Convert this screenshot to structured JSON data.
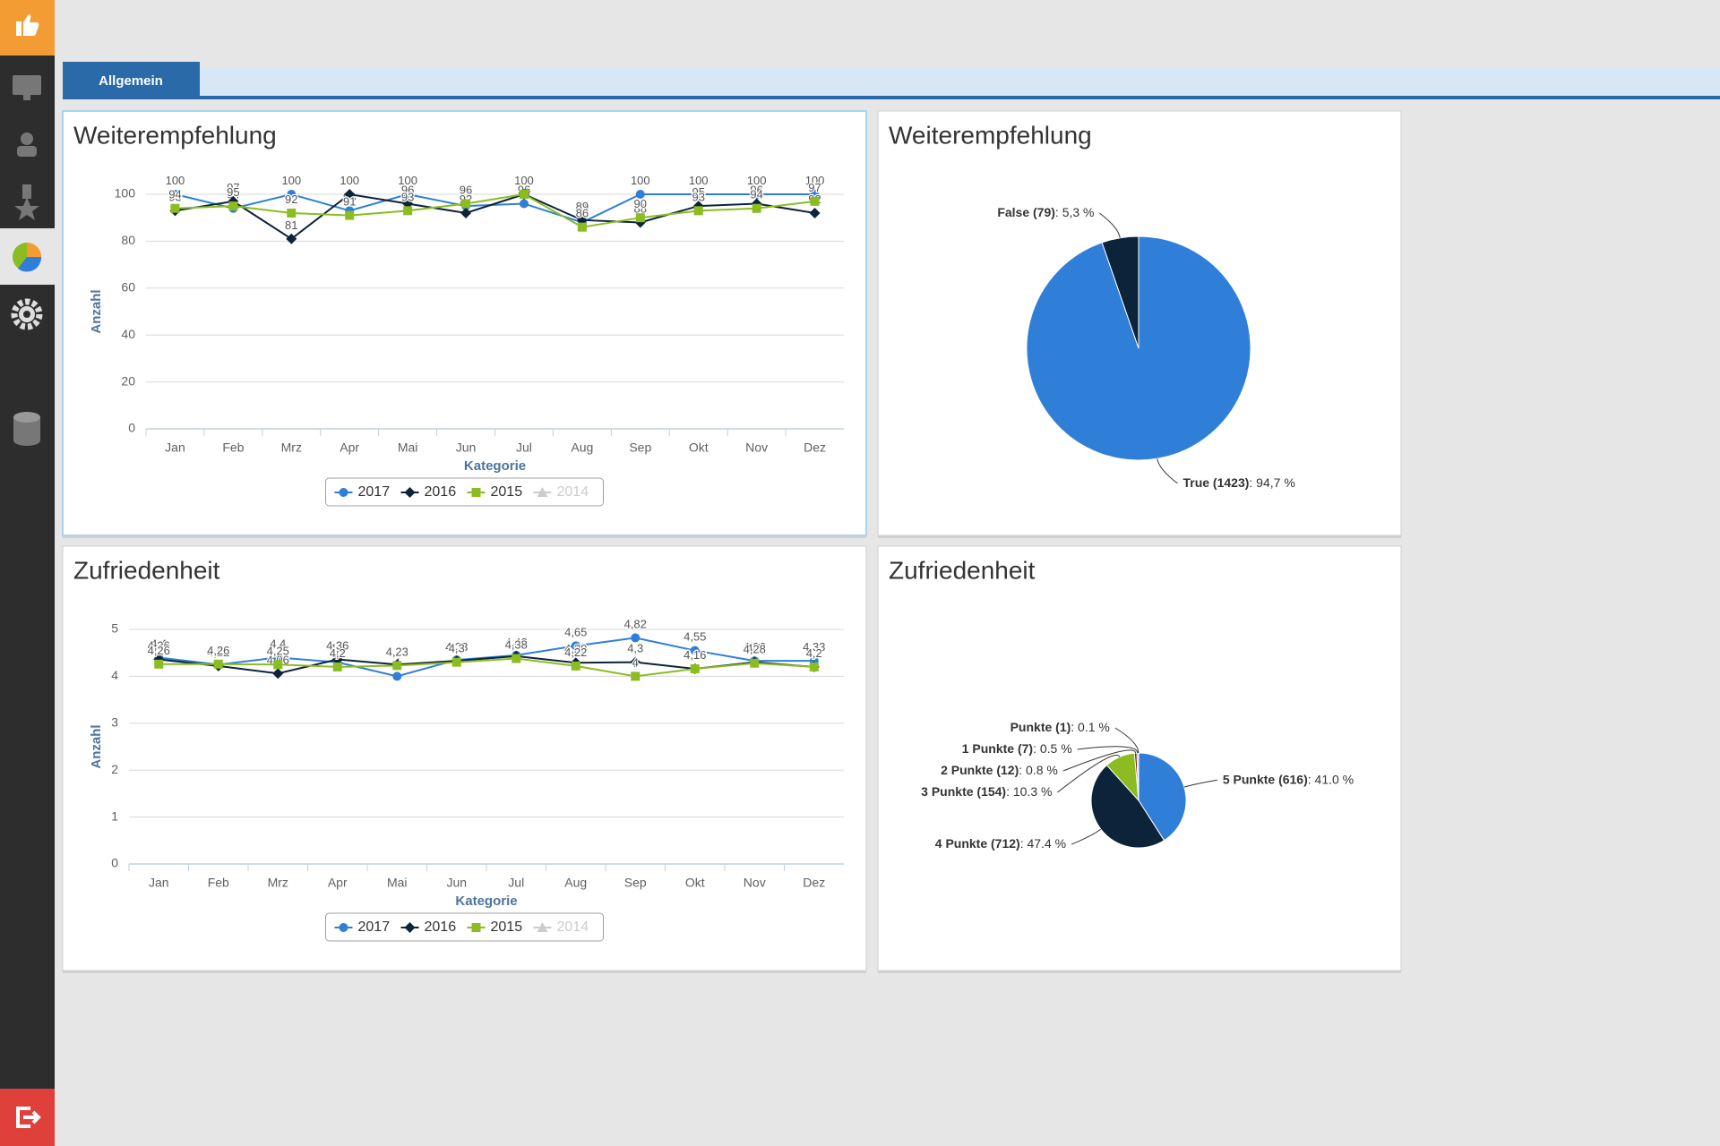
{
  "tab": "Allgemein",
  "chart_data": [
    {
      "type": "line",
      "title": "Weiterempfehlung",
      "xlabel": "Kategorie",
      "ylabel": "Anzahl",
      "categories": [
        "Jan",
        "Feb",
        "Mrz",
        "Apr",
        "Mai",
        "Jun",
        "Jul",
        "Aug",
        "Sep",
        "Okt",
        "Nov",
        "Dez"
      ],
      "ylim": [
        0,
        100
      ],
      "yticks": [
        0,
        20,
        40,
        60,
        80,
        100
      ],
      "grid": true,
      "series": [
        {
          "name": "2017",
          "color": "#2f7ed8",
          "marker": "circle",
          "values": [
            100,
            94,
            100,
            93,
            100,
            95,
            96,
            88,
            100,
            100,
            100,
            100
          ]
        },
        {
          "name": "2016",
          "color": "#0d233a",
          "marker": "diamond",
          "values": [
            93,
            97,
            81,
            100,
            96,
            92,
            100,
            89,
            88,
            95,
            96,
            92
          ]
        },
        {
          "name": "2015",
          "color": "#8bbc21",
          "marker": "square",
          "values": [
            94,
            95,
            92,
            91,
            93,
            96,
            100,
            86,
            90,
            93,
            94,
            97
          ]
        },
        {
          "name": "2014",
          "color": "#910000",
          "marker": "triangle",
          "visible": false,
          "values": [
            null,
            null,
            null,
            null,
            null,
            null,
            null,
            null,
            null,
            null,
            null,
            null
          ]
        }
      ]
    },
    {
      "type": "pie",
      "title": "Weiterempfehlung",
      "categories": [
        "True (1423)",
        "False (79)"
      ],
      "values": [
        94.7,
        5.3
      ],
      "value_labels": [
        ": 94,7 %",
        ": 5,3 %"
      ],
      "colors": [
        "#2f7ed8",
        "#0d233a"
      ]
    },
    {
      "type": "line",
      "title": "Zufriedenheit",
      "xlabel": "Kategorie",
      "ylabel": "Anzahl",
      "categories": [
        "Jan",
        "Feb",
        "Mrz",
        "Apr",
        "Mai",
        "Jun",
        "Jul",
        "Aug",
        "Sep",
        "Okt",
        "Nov",
        "Dez"
      ],
      "ylim": [
        0,
        5
      ],
      "yticks": [
        0,
        1,
        2,
        3,
        4,
        5
      ],
      "grid": true,
      "series": [
        {
          "name": "2017",
          "color": "#2f7ed8",
          "marker": "circle",
          "values": [
            4.4,
            4.25,
            4.4,
            4.3,
            4,
            4.35,
            4.45,
            4.65,
            4.82,
            4.55,
            4.33,
            4.33
          ],
          "value_labels": [
            "4,4",
            "4,25",
            "4,4",
            "4,3",
            "4",
            "4,35",
            "4,45",
            "4,65",
            "4,82",
            "4,55",
            "4,33",
            "4,33"
          ]
        },
        {
          "name": "2016",
          "color": "#0d233a",
          "marker": "diamond",
          "values": [
            4.36,
            4.22,
            4.06,
            4.36,
            4.25,
            4.33,
            4.43,
            4.29,
            4.3,
            4.16,
            4.3,
            4.2
          ],
          "value_labels": [
            "4,36",
            "4,22",
            "4,06",
            "4,36",
            "4,25",
            "4,33",
            "4,43",
            "4,29",
            "4,3",
            "4,16",
            "4,3",
            "4,2"
          ]
        },
        {
          "name": "2015",
          "color": "#8bbc21",
          "marker": "square",
          "values": [
            4.26,
            4.26,
            4.25,
            4.2,
            4.23,
            4.3,
            4.38,
            4.22,
            4,
            4.16,
            4.28,
            4.2
          ],
          "value_labels": [
            "4,26",
            "4,26",
            "4,25",
            "4,2",
            "4,23",
            "4,3",
            "4,38",
            "4,22",
            "4",
            "4,16",
            "4,28",
            "4,2"
          ]
        },
        {
          "name": "2014",
          "color": "#910000",
          "marker": "triangle",
          "visible": false,
          "values": [
            null,
            null,
            null,
            null,
            null,
            null,
            null,
            null,
            null,
            null,
            null,
            null
          ],
          "value_labels": [
            null,
            null,
            null,
            null,
            null,
            null,
            null,
            null,
            null,
            null,
            null,
            null
          ]
        }
      ]
    },
    {
      "type": "pie",
      "title": "Zufriedenheit",
      "categories": [
        "5 Punkte (616)",
        "4 Punkte (712)",
        "3 Punkte (154)",
        "2 Punkte (12)",
        "1 Punkte (7)",
        "Punkte (1)"
      ],
      "values": [
        41,
        47.4,
        10.3,
        0.8,
        0.5,
        0.1
      ],
      "value_labels": [
        ": 41.0 %",
        ": 47.4 %",
        ": 10.3 %",
        ": 0.8 %",
        ": 0.5 %",
        ": 0.1 %"
      ],
      "colors": [
        "#2f7ed8",
        "#0d233a",
        "#8bbc21",
        "#910000",
        "#1aadce",
        "#492970"
      ]
    }
  ]
}
